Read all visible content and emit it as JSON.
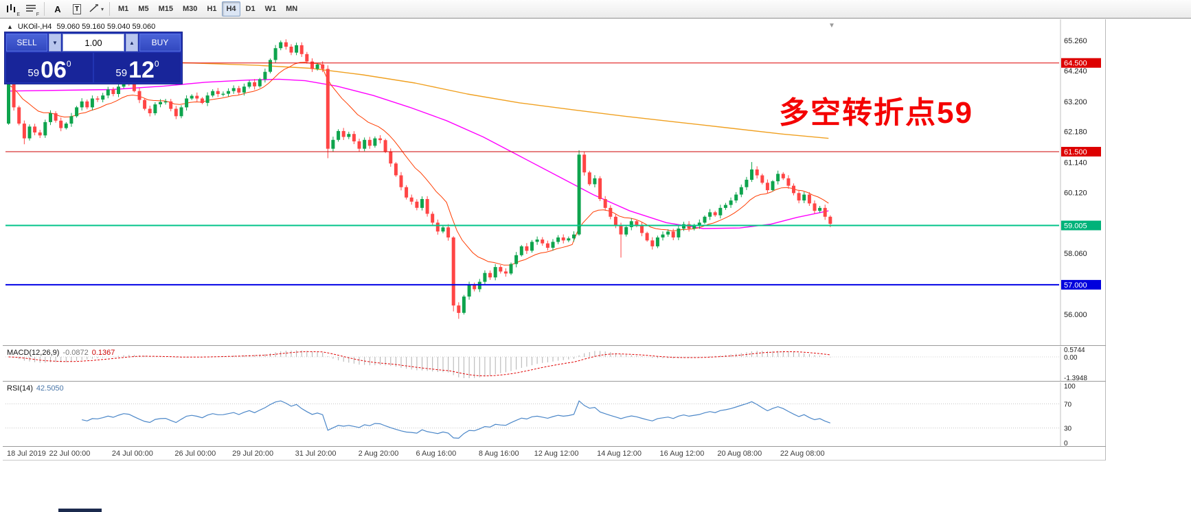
{
  "toolbar": {
    "icon_buttons": [
      {
        "name": "chart-type-icon",
        "sub": "E"
      },
      {
        "name": "chart-list-icon",
        "sub": "F"
      },
      {
        "name": "cursor-tool-icon",
        "label": "A"
      },
      {
        "name": "text-label-tool-icon",
        "label": "T"
      },
      {
        "name": "shapes-tool-icon",
        "caret": "▾"
      }
    ],
    "timeframes": [
      "M1",
      "M5",
      "M15",
      "M30",
      "H1",
      "H4",
      "D1",
      "W1",
      "MN"
    ],
    "active_timeframe": "H4"
  },
  "chart_header": {
    "collapse_arrow": "▲",
    "symbol_timeframe": "UKOil-,H4",
    "quotes": "59.060 59.160 59.040 59.060",
    "shift_marker": "▼"
  },
  "trade_panel": {
    "sell_label": "SELL",
    "buy_label": "BUY",
    "volume": "1.00",
    "spin_down": "▼",
    "spin_up": "▲",
    "sell_price": {
      "prefix": "59",
      "big": "06",
      "sup": "0"
    },
    "buy_price": {
      "prefix": "59",
      "big": "12",
      "sup": "0"
    }
  },
  "annotation": {
    "text": "多空转折点59",
    "color": "#f40000"
  },
  "price_axis": {
    "labels": [
      {
        "text": "65.260",
        "price": 65.26
      },
      {
        "text": "64.240",
        "price": 64.24
      },
      {
        "text": "63.200",
        "price": 63.2
      },
      {
        "text": "62.180",
        "price": 62.18
      },
      {
        "text": "61.140",
        "price": 61.14
      },
      {
        "text": "60.120",
        "price": 60.12
      },
      {
        "text": "58.060",
        "price": 58.06
      },
      {
        "text": "56.000",
        "price": 56.0
      }
    ],
    "badges": [
      {
        "text": "64.500",
        "price": 64.5,
        "color": "#dd0000"
      },
      {
        "text": "61.500",
        "price": 61.5,
        "color": "#dd0000"
      },
      {
        "text": "59.005",
        "price": 59.005,
        "color": "#00b279"
      },
      {
        "text": "57.000",
        "price": 57.0,
        "color": "#0000dd"
      }
    ]
  },
  "levels": [
    {
      "price": 64.5,
      "color": "#dd0000",
      "width": 1
    },
    {
      "price": 61.5,
      "color": "#cc0000",
      "width": 1
    },
    {
      "price": 59.005,
      "color": "#00c389",
      "width": 2
    },
    {
      "price": 57.0,
      "color": "#0000e6",
      "width": 2
    }
  ],
  "chart_data": {
    "type": "candlestick",
    "symbol": "UKOil-",
    "timeframe": "H4",
    "price_top": 65.26,
    "price_bottom": 56.0,
    "first_open": 62.45,
    "up_color": "#0ea44d",
    "down_color": "#ff4545",
    "closes": [
      63.8,
      63.0,
      62.45,
      61.95,
      62.35,
      62.15,
      62.05,
      62.5,
      62.8,
      62.55,
      62.3,
      62.45,
      62.7,
      63.0,
      63.2,
      63.0,
      63.3,
      63.26,
      63.4,
      63.6,
      63.45,
      63.7,
      63.9,
      63.83,
      63.55,
      63.25,
      62.95,
      62.8,
      63.1,
      63.18,
      63.2,
      62.95,
      62.7,
      63.0,
      63.3,
      63.39,
      63.3,
      63.15,
      63.4,
      63.55,
      63.45,
      63.46,
      63.55,
      63.65,
      63.5,
      63.7,
      63.85,
      63.71,
      63.95,
      64.2,
      64.6,
      65.0,
      65.2,
      65.05,
      64.85,
      65.1,
      64.8,
      64.55,
      64.3,
      64.45,
      64.3,
      61.6,
      61.9,
      62.2,
      62.0,
      62.1,
      61.85,
      61.6,
      61.9,
      61.7,
      61.95,
      61.89,
      61.5,
      61.1,
      60.7,
      60.3,
      59.95,
      59.81,
      59.6,
      59.9,
      59.4,
      59.1,
      58.8,
      58.94,
      58.6,
      56.3,
      56.05,
      56.6,
      57.0,
      56.85,
      57.1,
      57.4,
      57.25,
      57.6,
      57.45,
      57.38,
      57.7,
      58.0,
      58.3,
      58.15,
      58.45,
      58.53,
      58.4,
      58.25,
      58.45,
      58.6,
      58.5,
      58.57,
      58.7,
      61.4,
      60.8,
      60.4,
      60.6,
      59.9,
      59.6,
      59.3,
      59.0,
      58.7,
      58.95,
      59.15,
      59.0,
      58.75,
      58.5,
      58.3,
      58.6,
      58.7,
      58.8,
      58.6,
      58.9,
      59.05,
      58.9,
      59.0,
      59.1,
      59.3,
      59.45,
      59.35,
      59.6,
      59.7,
      59.85,
      60.05,
      60.3,
      60.55,
      60.9,
      60.7,
      60.45,
      60.2,
      60.5,
      60.75,
      60.6,
      60.35,
      60.1,
      59.85,
      60.05,
      59.75,
      59.5,
      59.6,
      59.3,
      59.06
    ],
    "wick_overrides": {
      "3": [
        null,
        61.75
      ],
      "52": [
        65.26,
        null
      ],
      "61": [
        64.42,
        61.28
      ],
      "85": [
        null,
        56.1
      ],
      "86": [
        null,
        55.85
      ],
      "109": [
        61.55,
        null
      ],
      "117": [
        null,
        57.92
      ],
      "142": [
        61.15,
        null
      ],
      "157": [
        null,
        58.95
      ]
    },
    "ma_fast": {
      "period": 13,
      "color": "#ff3c00"
    },
    "ma_mid": {
      "color": "#ff00ff",
      "points": [
        [
          0,
          63.55
        ],
        [
          20,
          63.6
        ],
        [
          30,
          63.72
        ],
        [
          38,
          63.85
        ],
        [
          46,
          63.92
        ],
        [
          52,
          63.95
        ],
        [
          57,
          63.9
        ],
        [
          63,
          63.72
        ],
        [
          70,
          63.4
        ],
        [
          77,
          63.0
        ],
        [
          84,
          62.55
        ],
        [
          91,
          62.0
        ],
        [
          98,
          61.35
        ],
        [
          105,
          60.7
        ],
        [
          112,
          60.05
        ],
        [
          119,
          59.5
        ],
        [
          126,
          59.1
        ],
        [
          133,
          58.9
        ],
        [
          140,
          58.92
        ],
        [
          146,
          59.05
        ],
        [
          151,
          59.28
        ],
        [
          157,
          59.5
        ]
      ]
    },
    "ma_slow": {
      "color": "#f0a020",
      "points": [
        [
          0,
          64.62
        ],
        [
          20,
          64.56
        ],
        [
          35,
          64.5
        ],
        [
          48,
          64.42
        ],
        [
          58,
          64.32
        ],
        [
          68,
          64.1
        ],
        [
          78,
          63.82
        ],
        [
          88,
          63.45
        ],
        [
          98,
          63.15
        ],
        [
          108,
          62.92
        ],
        [
          118,
          62.7
        ],
        [
          128,
          62.5
        ],
        [
          138,
          62.3
        ],
        [
          148,
          62.1
        ],
        [
          157,
          61.95
        ]
      ]
    }
  },
  "macd_panel": {
    "label": "MACD(12,26,9)",
    "value_main": "-0.0872",
    "value_signal": "0.1367",
    "axis_labels": [
      "0.5744",
      "0.00",
      "-1.3948"
    ],
    "histogram_color": "#b0b0b0",
    "signal_color": "#e00000"
  },
  "rsi_panel": {
    "label": "RSI(14)",
    "value": "42.5050",
    "axis_labels": [
      {
        "text": "100",
        "value": 100
      },
      {
        "text": "70",
        "value": 70
      },
      {
        "text": "30",
        "value": 30
      },
      {
        "text": "0",
        "value": 0
      }
    ],
    "level_lines": [
      70,
      30
    ],
    "line_color": "#4a86c8"
  },
  "time_axis": [
    {
      "label": "18 Jul 2019",
      "idx": 0
    },
    {
      "label": "22 Jul 00:00",
      "idx": 12
    },
    {
      "label": "24 Jul 00:00",
      "idx": 24
    },
    {
      "label": "26 Jul 00:00",
      "idx": 36
    },
    {
      "label": "29 Jul 20:00",
      "idx": 47
    },
    {
      "label": "31 Jul 20:00",
      "idx": 59
    },
    {
      "label": "2 Aug 20:00",
      "idx": 71
    },
    {
      "label": "6 Aug 16:00",
      "idx": 82
    },
    {
      "label": "8 Aug 16:00",
      "idx": 94
    },
    {
      "label": "12 Aug 12:00",
      "idx": 105
    },
    {
      "label": "14 Aug 12:00",
      "idx": 117
    },
    {
      "label": "16 Aug 12:00",
      "idx": 129
    },
    {
      "label": "20 Aug 08:00",
      "idx": 140
    },
    {
      "label": "22 Aug 08:00",
      "idx": 152
    }
  ]
}
